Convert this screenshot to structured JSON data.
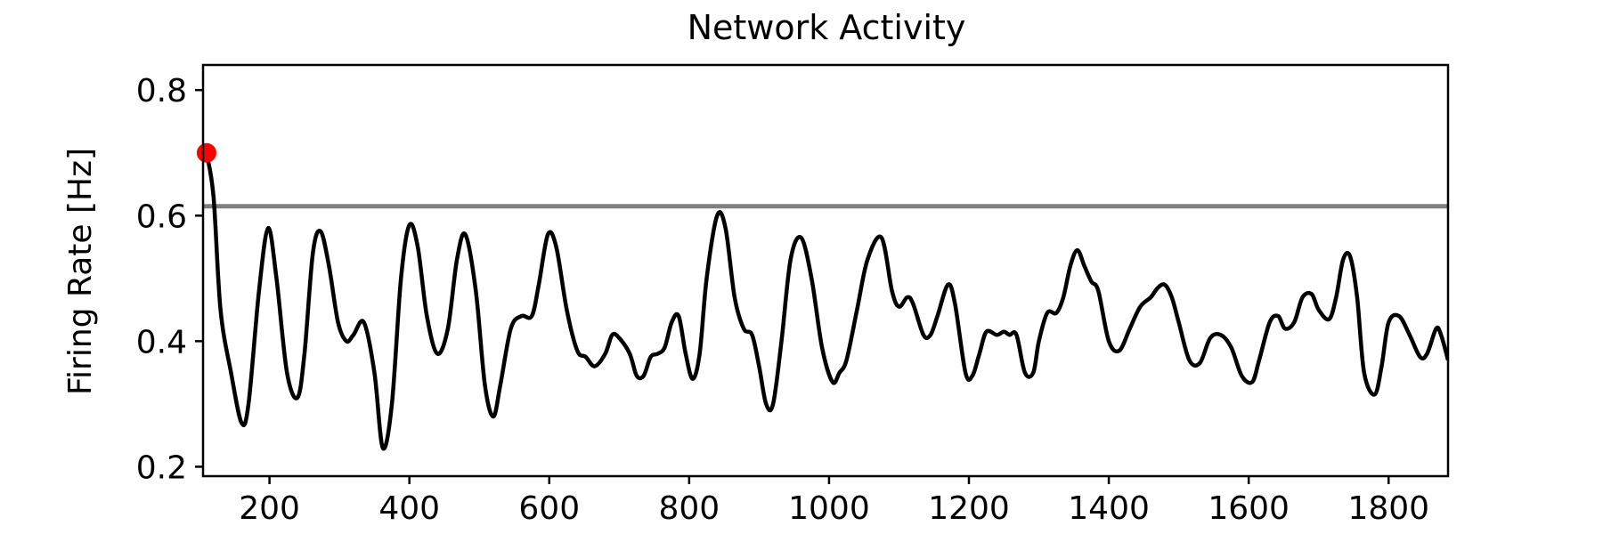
{
  "chart_data": {
    "type": "line",
    "title": "Network Activity",
    "xlabel": "",
    "ylabel": "Firing Rate [Hz]",
    "xlim": [
      105,
      1885
    ],
    "ylim": [
      0.185,
      0.84
    ],
    "xticks": [
      200,
      400,
      600,
      800,
      1000,
      1200,
      1400,
      1600,
      1800
    ],
    "yticks": [
      0.2,
      0.4,
      0.6,
      0.8
    ],
    "xtick_labels": [
      "200",
      "400",
      "600",
      "800",
      "1000",
      "1200",
      "1400",
      "1600",
      "1800"
    ],
    "ytick_labels": [
      "0.2",
      "0.4",
      "0.6",
      "0.8"
    ],
    "grid": false,
    "threshold": 0.615,
    "threshold_color": "#808080",
    "line_color": "#000000",
    "marker": {
      "x": 110,
      "y": 0.7,
      "color": "#ff0000"
    },
    "series": [
      {
        "x": [
          110,
          120,
          130,
          145,
          160,
          170,
          185,
          198,
          210,
          225,
          240,
          250,
          262,
          273,
          285,
          298,
          310,
          320,
          335,
          350,
          362,
          375,
          388,
          400,
          412,
          425,
          440,
          455,
          468,
          480,
          495,
          508,
          520,
          530,
          545,
          560,
          575,
          585,
          598,
          610,
          625,
          640,
          652,
          665,
          680,
          690,
          700,
          715,
          725,
          735,
          745,
          755,
          765,
          775,
          785,
          795,
          805,
          815,
          825,
          840,
          852,
          865,
          878,
          890,
          900,
          910,
          920,
          932,
          945,
          960,
          975,
          990,
          1005,
          1015,
          1025,
          1040,
          1055,
          1075,
          1090,
          1100,
          1112,
          1120,
          1135,
          1145,
          1155,
          1170,
          1180,
          1195,
          1205,
          1215,
          1225,
          1240,
          1250,
          1258,
          1268,
          1280,
          1292,
          1300,
          1312,
          1325,
          1335,
          1345,
          1355,
          1365,
          1375,
          1385,
          1400,
          1415,
          1430,
          1445,
          1460,
          1470,
          1480,
          1490,
          1500,
          1515,
          1530,
          1545,
          1560,
          1575,
          1590,
          1605,
          1615,
          1630,
          1642,
          1652,
          1665,
          1677,
          1690,
          1700,
          1715,
          1725,
          1735,
          1745,
          1755,
          1765,
          1780,
          1790,
          1800,
          1815,
          1830,
          1845,
          1855,
          1868,
          1875,
          1885
        ],
        "values": [
          0.7,
          0.63,
          0.45,
          0.35,
          0.27,
          0.3,
          0.48,
          0.58,
          0.5,
          0.35,
          0.31,
          0.38,
          0.54,
          0.575,
          0.52,
          0.43,
          0.4,
          0.41,
          0.43,
          0.35,
          0.23,
          0.3,
          0.5,
          0.585,
          0.55,
          0.44,
          0.38,
          0.42,
          0.53,
          0.57,
          0.48,
          0.33,
          0.28,
          0.33,
          0.42,
          0.44,
          0.44,
          0.49,
          0.57,
          0.55,
          0.45,
          0.385,
          0.375,
          0.36,
          0.38,
          0.41,
          0.405,
          0.38,
          0.345,
          0.345,
          0.375,
          0.38,
          0.39,
          0.43,
          0.44,
          0.38,
          0.34,
          0.38,
          0.5,
          0.6,
          0.58,
          0.47,
          0.42,
          0.41,
          0.36,
          0.3,
          0.3,
          0.4,
          0.53,
          0.565,
          0.5,
          0.39,
          0.335,
          0.35,
          0.37,
          0.45,
          0.53,
          0.565,
          0.48,
          0.455,
          0.47,
          0.46,
          0.41,
          0.41,
          0.44,
          0.49,
          0.46,
          0.35,
          0.345,
          0.38,
          0.415,
          0.41,
          0.415,
          0.41,
          0.41,
          0.35,
          0.35,
          0.4,
          0.445,
          0.445,
          0.47,
          0.52,
          0.545,
          0.52,
          0.495,
          0.48,
          0.4,
          0.385,
          0.42,
          0.455,
          0.47,
          0.485,
          0.49,
          0.47,
          0.43,
          0.37,
          0.365,
          0.405,
          0.41,
          0.39,
          0.345,
          0.335,
          0.37,
          0.43,
          0.44,
          0.42,
          0.43,
          0.47,
          0.475,
          0.45,
          0.435,
          0.47,
          0.53,
          0.535,
          0.47,
          0.35,
          0.315,
          0.36,
          0.43,
          0.44,
          0.41,
          0.375,
          0.38,
          0.42,
          0.41,
          0.37
        ]
      }
    ]
  }
}
